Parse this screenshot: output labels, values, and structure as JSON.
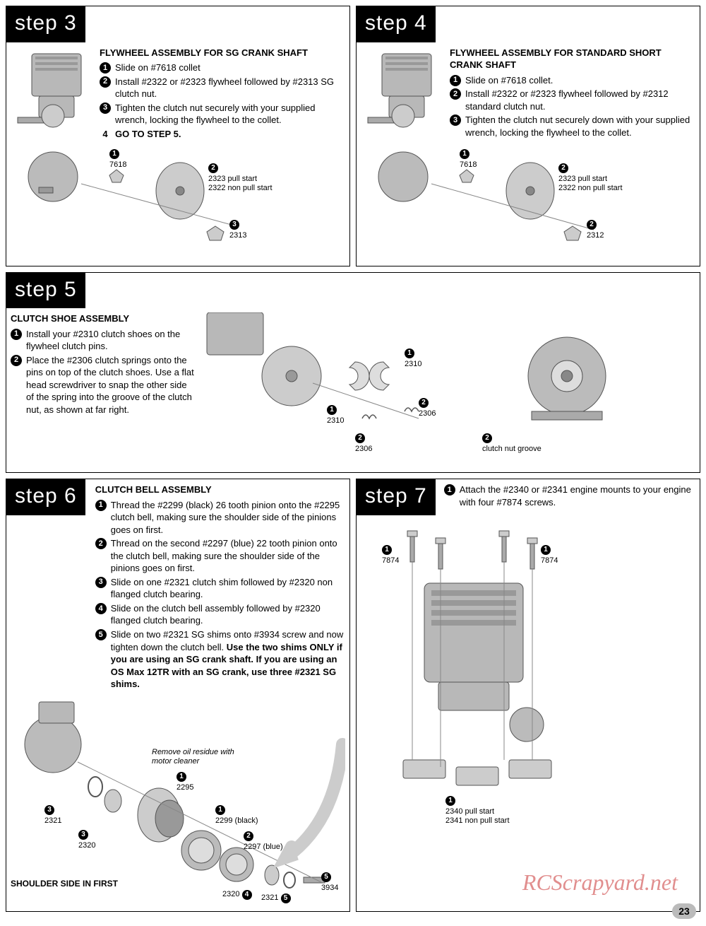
{
  "page_number": "23",
  "watermark": "RCScrapyard.net",
  "colors": {
    "ink": "#000000",
    "bg": "#ffffff",
    "engine_fill": "#b8b8b8",
    "engine_stroke": "#555555",
    "page_badge": "#bbbbbb",
    "arrow_fill": "#cccccc"
  },
  "step3": {
    "label": "step 3",
    "title": "FLYWHEEL ASSEMBLY FOR SG CRANK SHAFT",
    "instructions": [
      "Slide on #7618 collet",
      "Install #2322 or #2323 flywheel followed by #2313 SG clutch nut.",
      "Tighten the clutch nut securely with your supplied wrench, locking the flywheel to the collet."
    ],
    "goto": "GO TO STEP 5.",
    "parts": {
      "p1": {
        "num": "1",
        "id": "7618"
      },
      "p2": {
        "num": "2",
        "line1": "2323 pull start",
        "line2": "2322 non pull start"
      },
      "p3": {
        "num": "3",
        "id": "2313"
      }
    }
  },
  "step4": {
    "label": "step 4",
    "title": "FLYWHEEL ASSEMBLY FOR STANDARD SHORT CRANK SHAFT",
    "instructions": [
      "Slide on #7618 collet.",
      "Install #2322 or #2323 flywheel followed by #2312 standard clutch nut.",
      "Tighten the clutch nut securely down with your supplied wrench, locking the flywheel to the collet."
    ],
    "parts": {
      "p1": {
        "num": "1",
        "id": "7618"
      },
      "p2": {
        "num": "2",
        "line1": "2323 pull start",
        "line2": "2322 non pull start"
      },
      "p3": {
        "num": "2",
        "id": "2312"
      }
    }
  },
  "step5": {
    "label": "step 5",
    "title": "CLUTCH SHOE ASSEMBLY",
    "instructions": [
      "Install your #2310 clutch shoes on the flywheel clutch pins.",
      "Place the #2306 clutch springs onto the pins on top of the clutch shoes. Use a flat head screwdriver to snap the other side of the spring into the groove of the clutch nut, as shown at far right."
    ],
    "parts": {
      "p1a": {
        "num": "1",
        "id": "2310"
      },
      "p1b": {
        "num": "1",
        "id": "2310"
      },
      "p2a": {
        "num": "2",
        "id": "2306"
      },
      "p2b": {
        "num": "2",
        "id": "2306"
      },
      "groove": {
        "num": "2",
        "text": "clutch nut groove"
      }
    }
  },
  "step6": {
    "label": "step 6",
    "title": "CLUTCH BELL ASSEMBLY",
    "instructions": [
      "Thread the #2299 (black) 26 tooth pinion onto the #2295 clutch bell, making sure the shoulder side of the pinions goes on first.",
      "Thread on the second #2297 (blue) 22 tooth pinion onto the clutch bell, making sure the shoulder side of the pinions goes on first.",
      "Slide on one #2321 clutch shim followed by #2320 non flanged clutch bearing.",
      "Slide on the clutch bell assembly followed by  #2320 flanged clutch bearing.",
      "Slide on two #2321 SG shims onto #3934 screw and now tighten down the clutch bell. Use the two shims ONLY if you are using an SG crank shaft. If you are using an OS Max 12TR with an SG crank, use three #2321 SG shims."
    ],
    "note": "Remove oil residue with motor cleaner",
    "shoulder_note": "SHOULDER SIDE IN FIRST",
    "parts": {
      "p2295": {
        "num": "1",
        "id": "2295"
      },
      "p2299": {
        "num": "1",
        "id": "2299 (black)"
      },
      "p2297": {
        "num": "2",
        "id": "2297 (blue)"
      },
      "p2321a": {
        "num": "3",
        "id": "2321"
      },
      "p2320a": {
        "num": "3",
        "id": "2320"
      },
      "p2320b": {
        "num": "4",
        "id": "2320"
      },
      "p2321b": {
        "num": "5",
        "id": "2321"
      },
      "p3934": {
        "num": "5",
        "id": "3934"
      }
    }
  },
  "step7": {
    "label": "step 7",
    "instructions": [
      "Attach the #2340 or #2341 engine mounts to your engine with four #7874 screws."
    ],
    "parts": {
      "p7874a": {
        "num": "1",
        "id": "7874"
      },
      "p7874b": {
        "num": "1",
        "id": "7874"
      },
      "pmount": {
        "num": "1",
        "line1": "2340 pull start",
        "line2": "2341 non pull start"
      }
    }
  }
}
